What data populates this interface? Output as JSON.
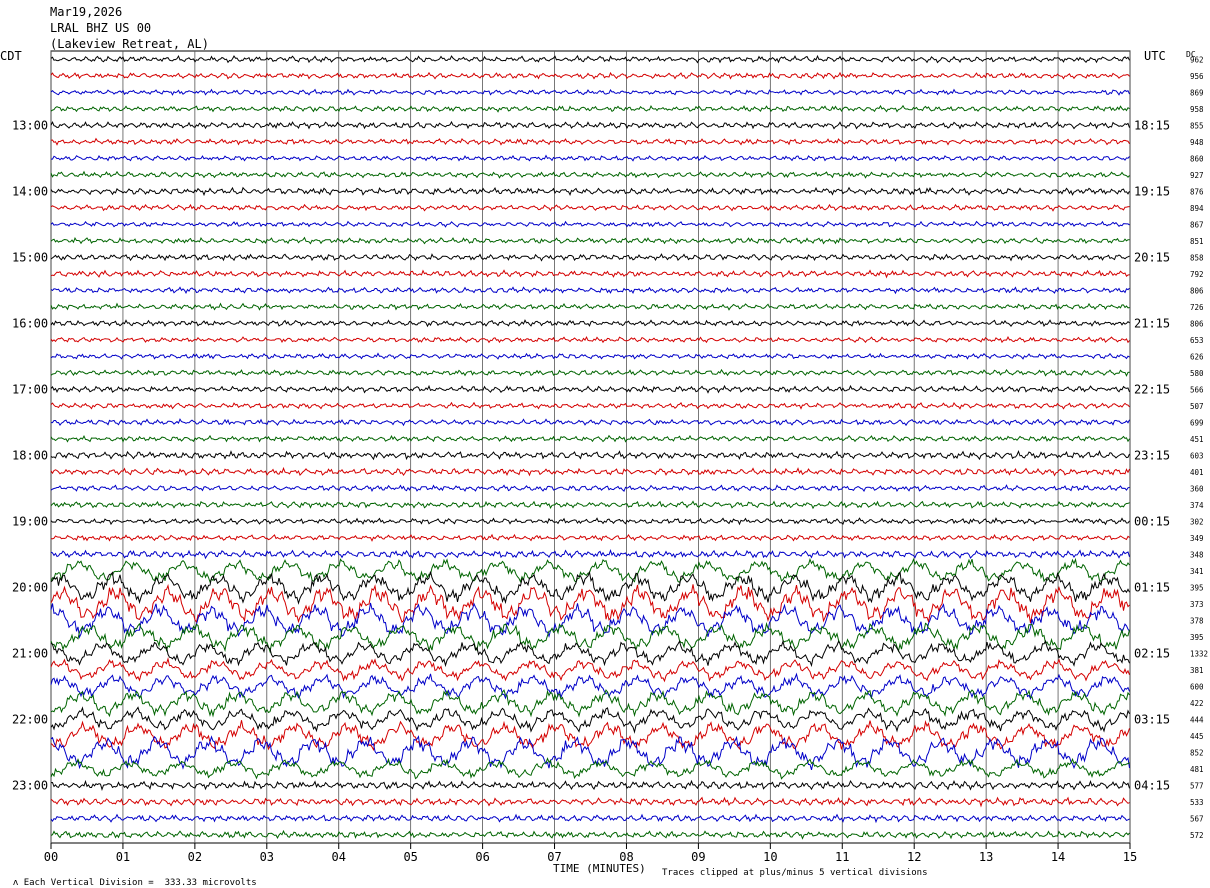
{
  "header": {
    "date": "Mar19,2026",
    "station": "LRAL BHZ US 00",
    "location": "(Lakeview Retreat, AL)"
  },
  "footer": {
    "scale_note": "Each Vertical Division =  333.33 microvolts",
    "axis_title": "TIME (MINUTES)",
    "clip_note": "Traces clipped at plus/minus 5 vertical divisions"
  },
  "chart_data": {
    "type": "line",
    "title": "",
    "subtitle": "LRAL BHZ US 00 (Lakeview Retreat, AL) Mar19,2026",
    "xlabel": "TIME (MINUTES)",
    "ylabel_left": "CDT",
    "ylabel_right": "UTC",
    "dc_label": "DC",
    "xlim": [
      0,
      15
    ],
    "x_ticks": [
      "00",
      "01",
      "02",
      "03",
      "04",
      "05",
      "06",
      "07",
      "08",
      "09",
      "10",
      "11",
      "12",
      "13",
      "14",
      "15"
    ],
    "grid": true,
    "trace_minutes_per_line": 15,
    "trace_colors": [
      "#000000",
      "#d40000",
      "#0000c8",
      "#006400"
    ],
    "left_time_labels": [
      "13:00",
      "14:00",
      "15:00",
      "16:00",
      "17:00",
      "18:00",
      "19:00",
      "20:00",
      "21:00",
      "22:00",
      "23:00"
    ],
    "right_time_labels": [
      "18:15",
      "19:15",
      "20:15",
      "21:15",
      "22:15",
      "23:15",
      "00:15",
      "01:15",
      "02:15",
      "03:15",
      "04:15"
    ],
    "dc_values": [
      "962",
      "956",
      "869",
      "958",
      "855",
      "948",
      "860",
      "927",
      "876",
      "894",
      "867",
      "851",
      "858",
      "792",
      "806",
      "726",
      "806",
      "653",
      "626",
      "580",
      "566",
      "507",
      "699",
      "451",
      "603",
      "401",
      "360",
      "374",
      "302",
      "349",
      "348",
      "341",
      "395",
      "373",
      "378",
      "395",
      "1332",
      "381",
      "600",
      "422",
      "444",
      "445",
      "852",
      "481",
      "577",
      "533",
      "567",
      "572"
    ],
    "amplitude_by_row": [
      1.1,
      1.0,
      0.9,
      1.0,
      1.1,
      1.0,
      0.9,
      1.0,
      1.2,
      1.0,
      0.9,
      1.0,
      1.1,
      1.1,
      1.0,
      1.0,
      1.0,
      0.9,
      0.9,
      1.0,
      1.1,
      1.0,
      1.0,
      1.0,
      1.3,
      1.2,
      1.0,
      1.1,
      1.0,
      1.0,
      1.3,
      2.0,
      2.6,
      3.2,
      2.8,
      2.4,
      2.0,
      1.8,
      2.0,
      2.2,
      2.0,
      2.4,
      2.8,
      1.6,
      1.4,
      1.4,
      1.2,
      1.2
    ]
  }
}
